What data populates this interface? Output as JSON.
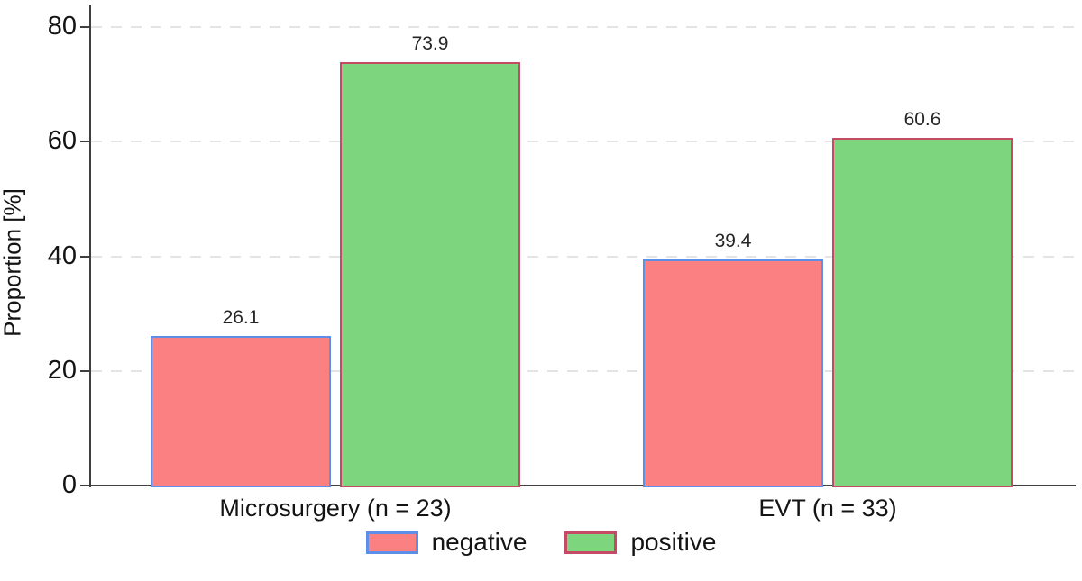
{
  "chart_data": {
    "type": "bar",
    "title": "",
    "xlabel": "",
    "ylabel": "Proportion [%]",
    "ylim": [
      0,
      80
    ],
    "yticks": [
      0,
      20,
      40,
      60,
      80
    ],
    "grid": "horizontal dashed light-gray at 20/40/60/80",
    "legend_position": "bottom-center",
    "value_labels": true,
    "categories": [
      "Microsurgery (n = 23)",
      "EVT (n = 33)"
    ],
    "series": [
      {
        "name": "negative",
        "values": [
          26.1,
          39.4
        ],
        "value_labels": [
          "26.1",
          "39.4"
        ],
        "fill_color": "#fb8082",
        "border_color": "#5d8ee8"
      },
      {
        "name": "positive",
        "values": [
          73.9,
          60.6
        ],
        "value_labels": [
          "73.9",
          "60.6"
        ],
        "fill_color": "#7dd67e",
        "border_color": "#c54a66"
      }
    ],
    "axis_color": "#3f3f3f",
    "gridline_color": "#e4e4e4",
    "text_color": "#141414"
  }
}
